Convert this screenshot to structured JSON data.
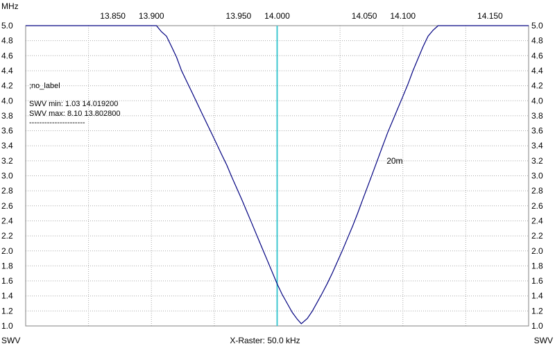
{
  "chart_data": {
    "type": "line",
    "x_unit_label": "MHz",
    "y_left_label": "SWV",
    "y_right_label": "SWV",
    "xlim": [
      13.8,
      14.2
    ],
    "ylim": [
      1.0,
      5.0
    ],
    "x_ticks": [
      13.85,
      13.9,
      13.95,
      14.0,
      14.05,
      14.1,
      14.15
    ],
    "x_tick_labels": [
      "13.850",
      "13.900",
      "13.950",
      "14.000",
      "14.050",
      "14.100",
      "14.150"
    ],
    "y_ticks": [
      1.0,
      1.2,
      1.4,
      1.6,
      1.8,
      2.0,
      2.2,
      2.4,
      2.6,
      2.8,
      3.0,
      3.2,
      3.4,
      3.6,
      3.8,
      4.0,
      4.2,
      4.4,
      4.6,
      4.8,
      5.0
    ],
    "y_tick_labels": [
      "1.0",
      "1.2",
      "1.4",
      "1.6",
      "1.8",
      "2.0",
      "2.2",
      "2.4",
      "2.6",
      "2.8",
      "3.0",
      "3.2",
      "3.4",
      "3.6",
      "3.8",
      "4.0",
      "4.2",
      "4.4",
      "4.6",
      "4.8",
      "5.0"
    ],
    "grid": true,
    "x_raster_label": "X-Raster: 50.0 kHz",
    "annotations": {
      "label": ";no_label",
      "swv_min": "SWV min: 1.03  14.019200",
      "swv_max": "SWV max: 8.10  13.802800",
      "separator": "----------------------"
    },
    "marker": {
      "x": 14.0,
      "label": "20m",
      "label_y": 3.2
    },
    "series": [
      {
        "x": [
          13.8,
          13.904,
          13.908,
          13.912,
          13.916,
          13.92,
          13.924,
          13.928,
          13.932,
          13.936,
          13.94,
          13.944,
          13.948,
          13.952,
          13.956,
          13.96,
          13.964,
          13.968,
          13.972,
          13.976,
          13.98,
          13.984,
          13.988,
          13.992,
          13.996,
          14.0,
          14.004,
          14.008,
          14.012,
          14.016,
          14.0192,
          14.024,
          14.028,
          14.032,
          14.036,
          14.04,
          14.044,
          14.048,
          14.052,
          14.056,
          14.06,
          14.064,
          14.068,
          14.072,
          14.076,
          14.08,
          14.084,
          14.088,
          14.092,
          14.096,
          14.1,
          14.104,
          14.108,
          14.112,
          14.116,
          14.12,
          14.124,
          14.128,
          14.2
        ],
        "y": [
          5.0,
          5.0,
          4.92,
          4.86,
          4.72,
          4.58,
          4.4,
          4.26,
          4.12,
          3.98,
          3.84,
          3.7,
          3.56,
          3.42,
          3.28,
          3.14,
          2.98,
          2.83,
          2.68,
          2.52,
          2.36,
          2.2,
          2.04,
          1.88,
          1.72,
          1.56,
          1.42,
          1.3,
          1.18,
          1.09,
          1.03,
          1.1,
          1.2,
          1.32,
          1.44,
          1.57,
          1.71,
          1.86,
          2.01,
          2.17,
          2.33,
          2.5,
          2.68,
          2.86,
          3.04,
          3.22,
          3.4,
          3.58,
          3.74,
          3.9,
          4.06,
          4.22,
          4.4,
          4.56,
          4.72,
          4.86,
          4.94,
          5.0,
          5.0
        ]
      }
    ],
    "colors": {
      "curve": "#000080",
      "marker": "#40c8d0",
      "grid": "#a9a9a9",
      "frame": "#808080"
    }
  }
}
